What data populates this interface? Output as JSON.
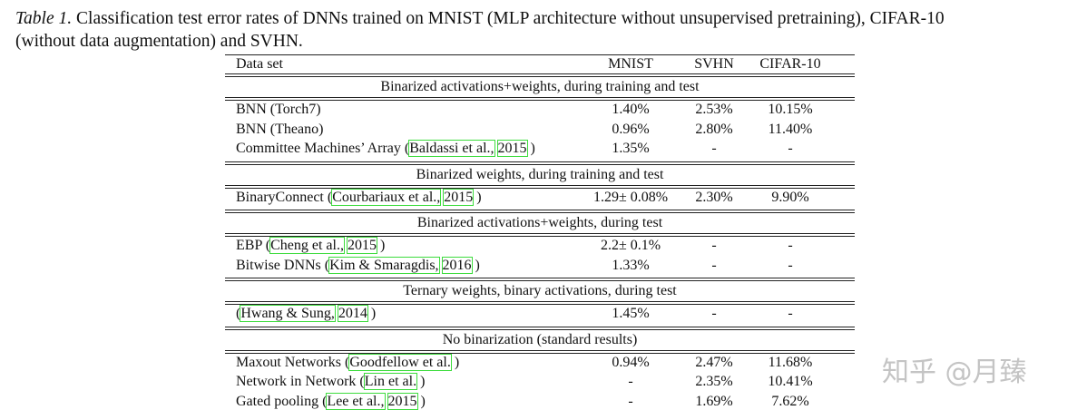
{
  "caption": {
    "label": "Table 1.",
    "lines": [
      "Classification test error rates of DNNs trained on MNIST (MLP architecture without unsupervised pretraining), CIFAR-10",
      "(without data augmentation) and SVHN."
    ]
  },
  "table": {
    "header": [
      "Data set",
      "MNIST",
      "SVHN",
      "CIFAR-10"
    ],
    "sections": [
      {
        "title": "Binarized activations+weights, during training and test",
        "rows": [
          {
            "method": [
              {
                "t": "BNN (Torch7)",
                "link": false
              }
            ],
            "values": [
              "1.40%",
              "2.53%",
              "10.15%"
            ]
          },
          {
            "method": [
              {
                "t": "BNN (Theano)",
                "link": false
              }
            ],
            "values": [
              "0.96%",
              "2.80%",
              "11.40%"
            ]
          },
          {
            "method": [
              {
                "t": "Committee Machines’ Array (",
                "link": false
              },
              {
                "t": "Baldassi et al.,",
                "link": true
              },
              {
                "t": "2015",
                "link": true
              },
              {
                "t": ")",
                "link": false
              }
            ],
            "values": [
              "1.35%",
              "-",
              "-"
            ]
          }
        ]
      },
      {
        "title": "Binarized weights, during training and test",
        "rows": [
          {
            "method": [
              {
                "t": "BinaryConnect (",
                "link": false
              },
              {
                "t": "Courbariaux et al.,",
                "link": true
              },
              {
                "t": "2015",
                "link": true
              },
              {
                "t": ")",
                "link": false
              }
            ],
            "values": [
              "1.29± 0.08%",
              "2.30%",
              "9.90%"
            ]
          }
        ]
      },
      {
        "title": "Binarized activations+weights, during test",
        "rows": [
          {
            "method": [
              {
                "t": "EBP (",
                "link": false
              },
              {
                "t": "Cheng et al.,",
                "link": true
              },
              {
                "t": "2015",
                "link": true
              },
              {
                "t": ")",
                "link": false
              }
            ],
            "values": [
              "2.2± 0.1%",
              "-",
              "-"
            ]
          },
          {
            "method": [
              {
                "t": "Bitwise DNNs (",
                "link": false
              },
              {
                "t": "Kim & Smaragdis,",
                "link": true
              },
              {
                "t": "2016",
                "link": true
              },
              {
                "t": ")",
                "link": false
              }
            ],
            "values": [
              "1.33%",
              "-",
              "-"
            ]
          }
        ]
      },
      {
        "title": "Ternary weights, binary activations, during test",
        "rows": [
          {
            "method": [
              {
                "t": "(",
                "link": false
              },
              {
                "t": "Hwang & Sung,",
                "link": true
              },
              {
                "t": "2014",
                "link": true
              },
              {
                "t": ")",
                "link": false
              }
            ],
            "values": [
              "1.45%",
              "-",
              "-"
            ]
          }
        ]
      },
      {
        "title": "No binarization (standard results)",
        "rows": [
          {
            "method": [
              {
                "t": "Maxout Networks (",
                "link": false
              },
              {
                "t": "Goodfellow et al.",
                "link": true
              },
              {
                "t": ")",
                "link": false
              }
            ],
            "values": [
              "0.94%",
              "2.47%",
              "11.68%"
            ]
          },
          {
            "method": [
              {
                "t": "Network in Network (",
                "link": false
              },
              {
                "t": "Lin et al.",
                "link": true
              },
              {
                "t": ")",
                "link": false
              }
            ],
            "values": [
              "-",
              "2.35%",
              "10.41%"
            ]
          },
          {
            "method": [
              {
                "t": "Gated pooling (",
                "link": false
              },
              {
                "t": "Lee et al.,",
                "link": true
              },
              {
                "t": "2015",
                "link": true
              },
              {
                "t": ")",
                "link": false
              }
            ],
            "values": [
              "-",
              "1.69%",
              "7.62%"
            ]
          }
        ]
      }
    ]
  },
  "watermark": "知乎 @月臻"
}
